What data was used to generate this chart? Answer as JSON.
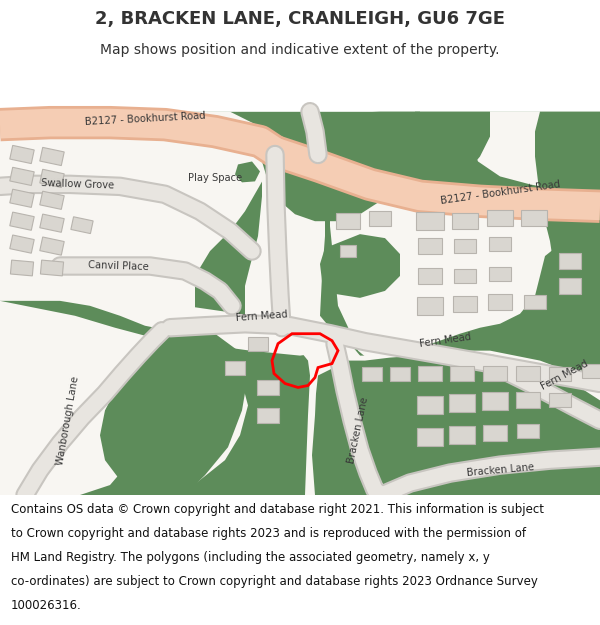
{
  "title": "2, BRACKEN LANE, CRANLEIGH, GU6 7GE",
  "subtitle": "Map shows position and indicative extent of the property.",
  "bg_color": "#ffffff",
  "map_bg": "#f2efe9",
  "green_color": "#5d8c5a",
  "road_fill": "#f5cdb4",
  "road_edge": "#e8b090",
  "white_road": "#f0ede8",
  "road_outline_color": "#cccccc",
  "building_color": "#d9d6d0",
  "building_edge": "#b8b4ae",
  "plot_color": "#ff0000",
  "text_color": "#333333",
  "title_fontsize": 13,
  "subtitle_fontsize": 10,
  "footer_fontsize": 8.5,
  "footer_lines": [
    "Contains OS data © Crown copyright and database right 2021. This information is subject",
    "to Crown copyright and database rights 2023 and is reproduced with the permission of",
    "HM Land Registry. The polygons (including the associated geometry, namely x, y",
    "co-ordinates) are subject to Crown copyright and database rights 2023 Ordnance Survey",
    "100026316."
  ]
}
